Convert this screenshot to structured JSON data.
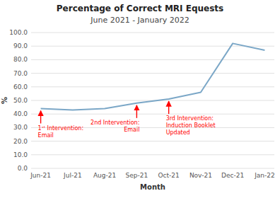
{
  "chart_data": {
    "type": "line",
    "title": "Percentage of Correct MRI Equests",
    "subtitle": "June 2021 - January 2022",
    "x_label": "Month",
    "y_label": "%",
    "categories": [
      "Jun-21",
      "Jul-21",
      "Aug-21",
      "Sep-21",
      "Oct-21",
      "Nov-21",
      "Dec-21",
      "Jan-22"
    ],
    "values": [
      44.0,
      43.0,
      44.0,
      48.0,
      51.0,
      56.0,
      92.0,
      87.0
    ],
    "color": "#7BA7C7",
    "ylim": [
      0.0,
      100.0
    ],
    "yticks": [
      {
        "value": 0.0,
        "label": "0.0"
      },
      {
        "value": 10.0,
        "label": "10.0"
      },
      {
        "value": 20.0,
        "label": "20.0"
      },
      {
        "value": 30.0,
        "label": "30.0"
      },
      {
        "value": 40.0,
        "label": "40.0"
      },
      {
        "value": 50.0,
        "label": "50.0"
      },
      {
        "value": 60.0,
        "label": "60.0"
      },
      {
        "value": 70.0,
        "label": "70.0"
      },
      {
        "value": 80.0,
        "label": "80.0"
      },
      {
        "value": 90.0,
        "label": "90.0"
      },
      {
        "value": 100.0,
        "label": "100.0"
      }
    ],
    "grid": true,
    "annotations": [
      {
        "text": "1ˢᵗ Intervention:\nEmail",
        "category": "Jun-21",
        "value": 44.0,
        "color": "#FF0000"
      },
      {
        "text": "2nd Intervention:\nEmail",
        "category": "Sep-21",
        "value": 48.0,
        "color": "#FF0000"
      },
      {
        "text": "3rd Intervention:\nInduction Booklet\nUpdated",
        "category": "Oct-21",
        "value": 51.0,
        "color": "#FF0000"
      }
    ]
  }
}
